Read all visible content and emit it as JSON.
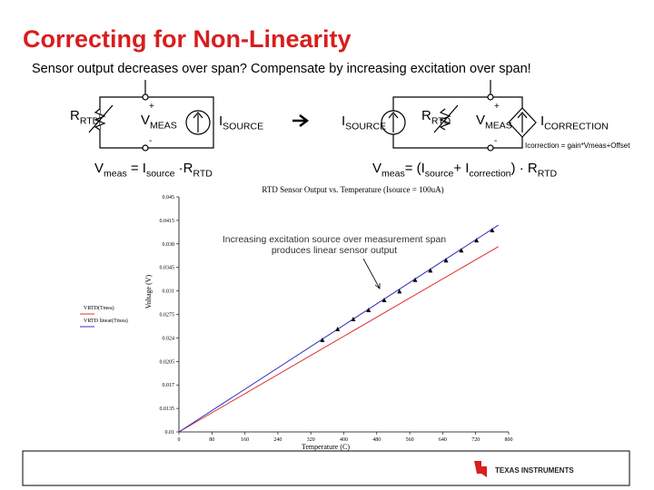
{
  "slide": {
    "title": "Correcting for Non-Linearity",
    "subtitle": "Sensor output decreases over span?  Compensate by increasing excitation over span!",
    "left_circuit": {
      "resistor": [
        "R",
        "RTD"
      ],
      "voltage": [
        "V",
        "MEAS"
      ],
      "source": [
        "I",
        "SOURCE"
      ],
      "plus": "+",
      "minus": "-",
      "equation": [
        "V",
        "meas",
        " = I",
        "source",
        " ·R",
        "RTD"
      ]
    },
    "right_circuit": {
      "source": [
        "I",
        "SOURCE"
      ],
      "resistor": [
        "R",
        "RTD"
      ],
      "voltage": [
        "V",
        "MEAS"
      ],
      "correction": [
        "I",
        "CORRECTION"
      ],
      "plus": "+",
      "minus": "-",
      "formula": "Icorrection = gain*Vmeas+Offset",
      "equation": [
        "V",
        "meas",
        "= (I",
        "source",
        "+ I",
        "correction",
        ") · R",
        "RTD"
      ]
    },
    "company": "TEXAS INSTRUMENTS"
  },
  "chart_data": {
    "type": "line",
    "title": "RTD Sensor Output vs. Temperature (Isource = 100uA)",
    "x_label": "Temperature (C)",
    "y_label": "Voltage (V)",
    "annotation": "Increasing excitation source over measurement span produces linear sensor output",
    "xlim": [
      0,
      800
    ],
    "xticks": [
      0,
      80,
      160,
      240,
      320,
      400,
      480,
      560,
      640,
      720,
      800
    ],
    "ylim": [
      0.01,
      0.045
    ],
    "yticks": [
      0.01,
      0.0135,
      0.017,
      0.0205,
      0.024,
      0.0275,
      0.031,
      0.0345,
      0.038,
      0.0415,
      0.045
    ],
    "series": [
      {
        "name": "VRTD(Tmea)",
        "color": "#e03030",
        "x": [
          0,
          775
        ],
        "values": [
          0.01,
          0.0376
        ]
      },
      {
        "name": "VRTD linear(Tmea)",
        "color": "#3030c0",
        "x": [
          0,
          775
        ],
        "values": [
          0.01,
          0.0408
        ]
      },
      {
        "color": "#000000",
        "x": [
          348,
          385,
          423,
          460,
          498,
          535,
          573,
          610,
          648,
          685,
          722,
          760
        ],
        "values": [
          0.02365,
          0.02527,
          0.02676,
          0.0281,
          0.0296,
          0.0309,
          0.0326,
          0.034,
          0.0355,
          0.037,
          0.0385,
          0.04
        ]
      }
    ]
  }
}
